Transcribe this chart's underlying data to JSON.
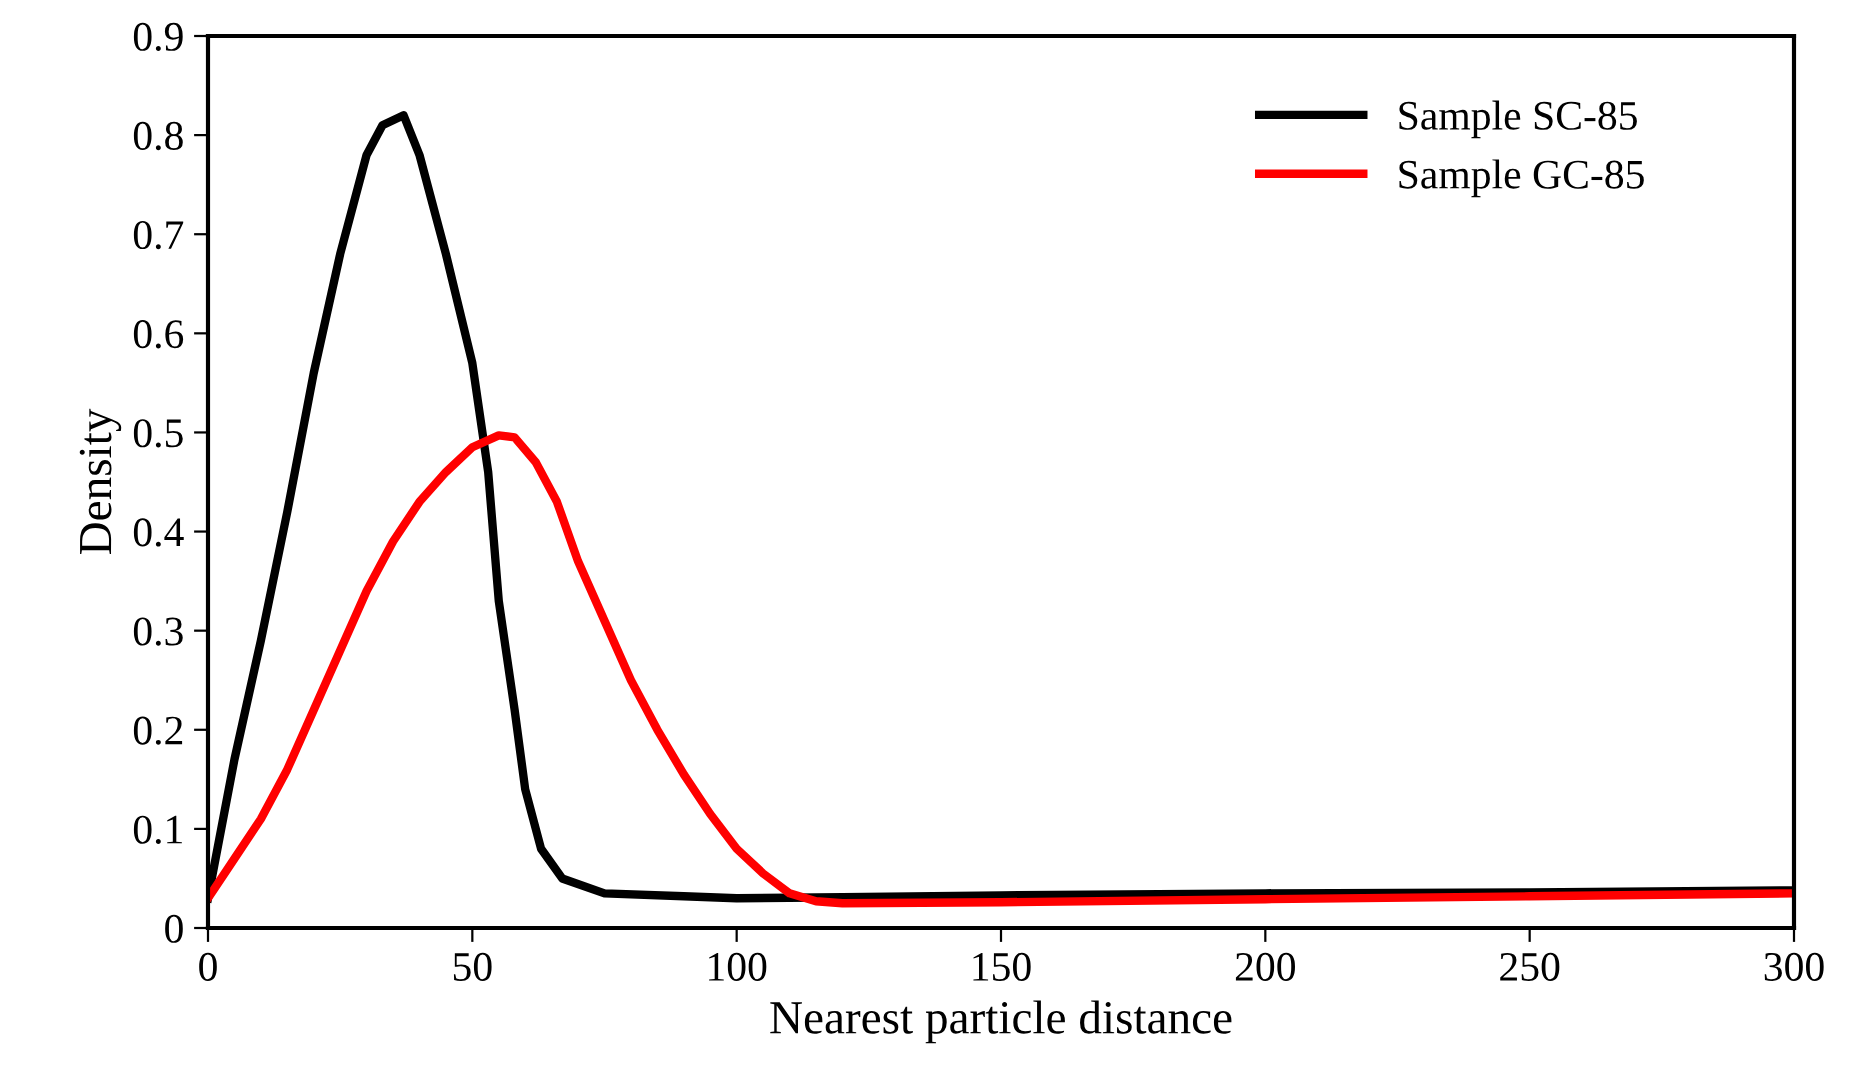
{
  "chart_data": {
    "type": "line",
    "xlabel": "Nearest particle distance",
    "ylabel": "Density",
    "xlim": [
      0,
      300
    ],
    "xticks": [
      0,
      50,
      100,
      150,
      200,
      250,
      300
    ],
    "ylim": [
      0,
      0.9
    ],
    "yticks": [
      0,
      0.1,
      0.2,
      0.3,
      0.4,
      0.5,
      0.6,
      0.7,
      0.8,
      0.9
    ],
    "grid": false,
    "legend": "top right",
    "marker": "none",
    "line_style": "solid",
    "series": [
      {
        "name": "Sample SC-85",
        "color": "#000000",
        "x": [
          0,
          5,
          10,
          15,
          20,
          25,
          30,
          33,
          37,
          40,
          45,
          50,
          53,
          55,
          58,
          60,
          63,
          67,
          75,
          90,
          100,
          120,
          150,
          200,
          250,
          300
        ],
        "values": [
          0.03,
          0.17,
          0.29,
          0.42,
          0.56,
          0.68,
          0.78,
          0.81,
          0.82,
          0.78,
          0.68,
          0.57,
          0.46,
          0.33,
          0.22,
          0.14,
          0.08,
          0.05,
          0.035,
          0.032,
          0.03,
          0.031,
          0.033,
          0.035,
          0.036,
          0.038
        ]
      },
      {
        "name": "Sample GC-85",
        "color": "#ff0000",
        "x": [
          0,
          5,
          10,
          15,
          20,
          25,
          30,
          35,
          40,
          45,
          50,
          55,
          58,
          62,
          66,
          70,
          75,
          80,
          85,
          90,
          95,
          100,
          105,
          110,
          115,
          120,
          150,
          200,
          250,
          300
        ],
        "values": [
          0.03,
          0.07,
          0.11,
          0.16,
          0.22,
          0.28,
          0.34,
          0.39,
          0.43,
          0.46,
          0.485,
          0.497,
          0.495,
          0.47,
          0.43,
          0.37,
          0.31,
          0.25,
          0.2,
          0.155,
          0.115,
          0.08,
          0.055,
          0.035,
          0.027,
          0.025,
          0.026,
          0.029,
          0.032,
          0.035
        ]
      }
    ]
  }
}
